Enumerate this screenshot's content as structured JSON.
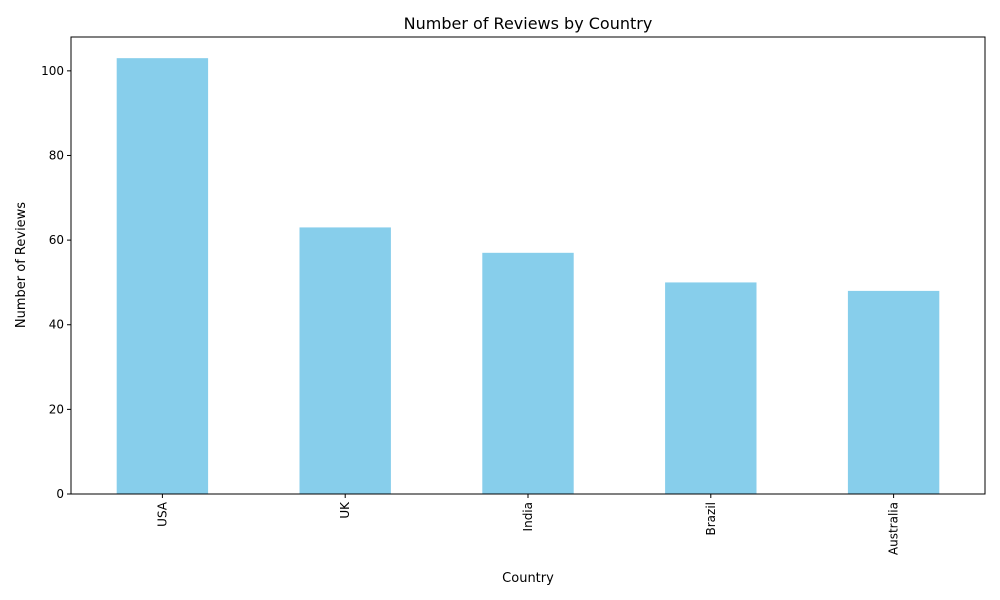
{
  "chart_data": {
    "type": "bar",
    "title": "Number of Reviews by Country",
    "xlabel": "Country",
    "ylabel": "Number of Reviews",
    "categories": [
      "USA",
      "UK",
      "India",
      "Brazil",
      "Australia"
    ],
    "values": [
      103,
      63,
      57,
      50,
      48
    ],
    "ylim": [
      0,
      108
    ],
    "yticks": [
      0,
      20,
      40,
      60,
      80,
      100
    ],
    "bar_color": "#87CEEB",
    "grid": false,
    "legend": "none"
  }
}
